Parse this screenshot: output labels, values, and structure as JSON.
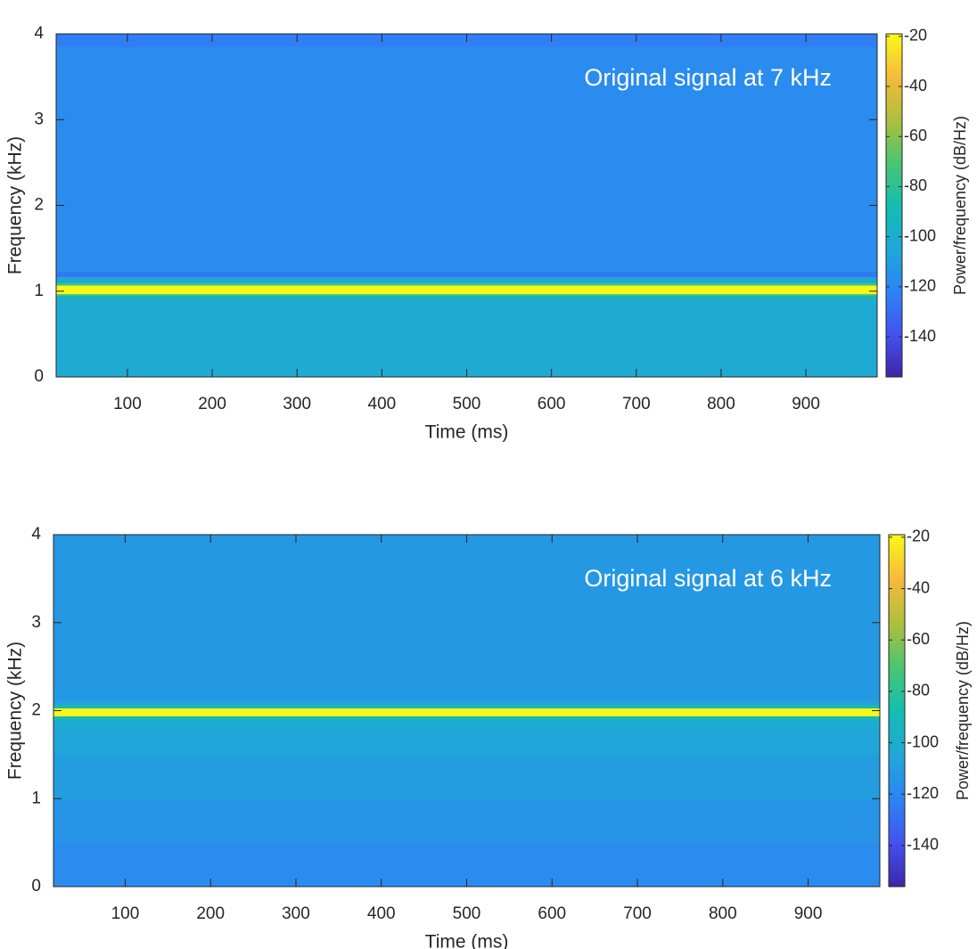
{
  "chart_data": [
    {
      "type": "spectrogram",
      "annotation": "Original signal at 7 kHz",
      "xlabel": "Time (ms)",
      "ylabel": "Frequency (kHz)",
      "colorbar_label": "Power/frequency (dB/Hz)",
      "xlim": [
        16,
        984
      ],
      "xticks": [
        100,
        200,
        300,
        400,
        500,
        600,
        700,
        800,
        900
      ],
      "ylim": [
        0,
        4
      ],
      "yticks": [
        0,
        1,
        2,
        3,
        4
      ],
      "clim": [
        -156,
        -19
      ],
      "cticks": [
        -20,
        -40,
        -60,
        -80,
        -100,
        -120,
        -140
      ],
      "colormap": [
        "#3e26a8",
        "#4253f0",
        "#2d84f5",
        "#1fa8d7",
        "#14bdb1",
        "#4ac670",
        "#b0be3d",
        "#f6ba3c",
        "#f9fb15"
      ],
      "freq_edges": [
        0,
        0.9,
        0.95,
        0.97,
        1.07,
        1.1,
        1.17,
        1.23,
        3.85,
        4
      ],
      "values": [
        -103,
        -97,
        -75,
        -20,
        -75,
        -105,
        -126,
        -118,
        -124
      ]
    },
    {
      "type": "spectrogram",
      "annotation": "Original signal at 6 kHz",
      "xlabel": "Time (ms)",
      "ylabel": "Frequency (kHz)",
      "colorbar_label": "Power/frequency (dB/Hz)",
      "xlim": [
        16,
        984
      ],
      "xticks": [
        100,
        200,
        300,
        400,
        500,
        600,
        700,
        800,
        900
      ],
      "ylim": [
        0,
        4
      ],
      "yticks": [
        0,
        1,
        2,
        3,
        4
      ],
      "clim": [
        -156,
        -19
      ],
      "cticks": [
        -20,
        -40,
        -60,
        -80,
        -100,
        -120,
        -140
      ],
      "colormap": [
        "#3e26a8",
        "#4253f0",
        "#2d84f5",
        "#1fa8d7",
        "#14bdb1",
        "#4ac670",
        "#b0be3d",
        "#f6ba3c",
        "#f9fb15"
      ],
      "freq_edges": [
        0,
        0.5,
        1,
        1.5,
        1.8,
        1.9,
        1.94,
        2.03,
        2.07,
        2.12,
        4
      ],
      "values": [
        -118,
        -114,
        -110,
        -106,
        -102,
        -90,
        -20,
        -90,
        -108,
        -112
      ]
    }
  ]
}
